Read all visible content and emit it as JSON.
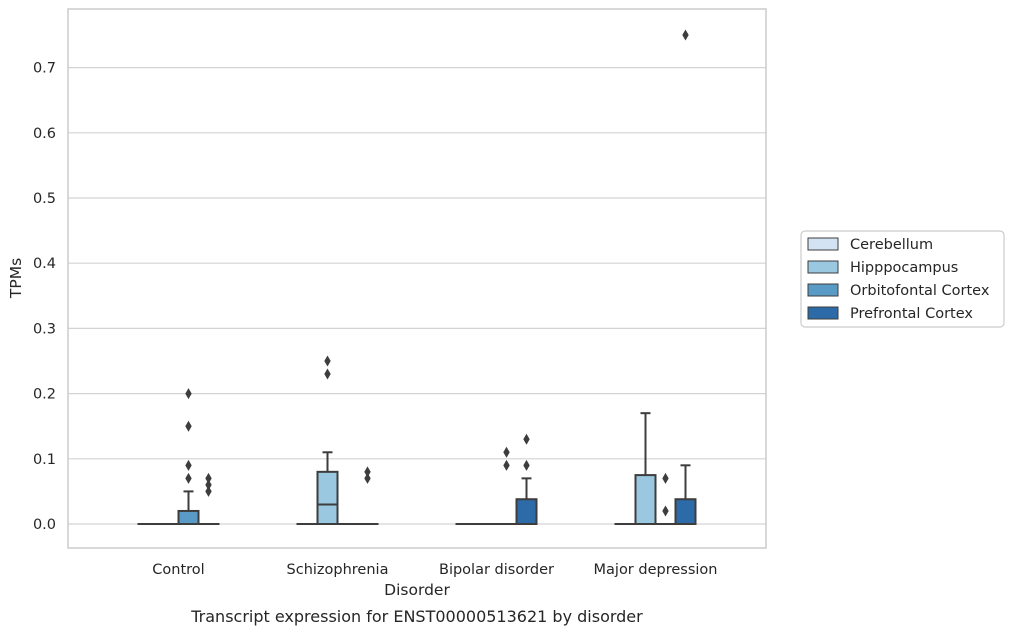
{
  "chart_data": {
    "type": "box",
    "caption": "Transcript expression for ENST00000513621 by disorder",
    "xlabel": "Disorder",
    "ylabel": "TPMs",
    "ylim": [
      -0.037,
      0.788
    ],
    "yticks": [
      "0.0",
      "0.1",
      "0.2",
      "0.3",
      "0.4",
      "0.5",
      "0.6",
      "0.7"
    ],
    "ytick_values": [
      0,
      0.1,
      0.2,
      0.3,
      0.4,
      0.5,
      0.6,
      0.7
    ],
    "grid": "horizontal",
    "legend_position": "right, outside plot",
    "categories": [
      "Control",
      "Schizophrenia",
      "Bipolar disorder",
      "Major depression"
    ],
    "series": [
      {
        "name": "Cerebellum",
        "color": "#d3e3f3",
        "boxes": [
          {
            "q1": 0,
            "median": 0,
            "q3": 0,
            "whisker_low": 0,
            "whisker_high": 0,
            "outliers": []
          },
          {
            "q1": 0,
            "median": 0,
            "q3": 0,
            "whisker_low": 0,
            "whisker_high": 0,
            "outliers": []
          },
          {
            "q1": 0,
            "median": 0,
            "q3": 0,
            "whisker_low": 0,
            "whisker_high": 0,
            "outliers": []
          },
          {
            "q1": 0,
            "median": 0,
            "q3": 0,
            "whisker_low": 0,
            "whisker_high": 0,
            "outliers": []
          }
        ]
      },
      {
        "name": "Hipppocampus",
        "color": "#9ac8e0",
        "boxes": [
          {
            "q1": 0,
            "median": 0,
            "q3": 0,
            "whisker_low": 0,
            "whisker_high": 0,
            "outliers": []
          },
          {
            "q1": 0,
            "median": 0.03,
            "q3": 0.08,
            "whisker_low": 0,
            "whisker_high": 0.11,
            "outliers": [
              0.23,
              0.25
            ]
          },
          {
            "q1": 0,
            "median": 0,
            "q3": 0,
            "whisker_low": 0,
            "whisker_high": 0,
            "outliers": []
          },
          {
            "q1": 0,
            "median": 0,
            "q3": 0.075,
            "whisker_low": 0,
            "whisker_high": 0.17,
            "outliers": []
          }
        ]
      },
      {
        "name": "Orbitofontal Cortex",
        "color": "#5a9ac6",
        "boxes": [
          {
            "q1": 0,
            "median": 0,
            "q3": 0.02,
            "whisker_low": 0,
            "whisker_high": 0.05,
            "outliers": [
              0.07,
              0.2,
              0.15,
              0.09
            ]
          },
          {
            "q1": 0,
            "median": 0,
            "q3": 0,
            "whisker_low": 0,
            "whisker_high": 0,
            "outliers": []
          },
          {
            "q1": 0,
            "median": 0,
            "q3": 0,
            "whisker_low": 0,
            "whisker_high": 0,
            "outliers": [
              0.09,
              0.11
            ]
          },
          {
            "q1": 0,
            "median": 0,
            "q3": 0,
            "whisker_low": 0,
            "whisker_high": 0,
            "outliers": [
              0.07,
              0.02
            ]
          }
        ]
      },
      {
        "name": "Prefrontal Cortex",
        "color": "#2c6aa8",
        "boxes": [
          {
            "q1": 0,
            "median": 0,
            "q3": 0,
            "whisker_low": 0,
            "whisker_high": 0,
            "outliers": [
              0.05,
              0.06,
              0.07
            ]
          },
          {
            "q1": 0,
            "median": 0,
            "q3": 0,
            "whisker_low": 0,
            "whisker_high": 0,
            "outliers": [
              0.07,
              0.08
            ]
          },
          {
            "q1": 0,
            "median": 0,
            "q3": 0.038,
            "whisker_low": 0,
            "whisker_high": 0.07,
            "outliers": [
              0.09,
              0.13
            ]
          },
          {
            "q1": 0,
            "median": 0,
            "q3": 0.038,
            "whisker_low": 0,
            "whisker_high": 0.09,
            "outliers": [
              0.75
            ]
          }
        ]
      }
    ],
    "styling": {
      "edge_color": "#3d3d3d",
      "grid_color": "#d3d3d3",
      "spine_color": "#cccccc"
    }
  }
}
